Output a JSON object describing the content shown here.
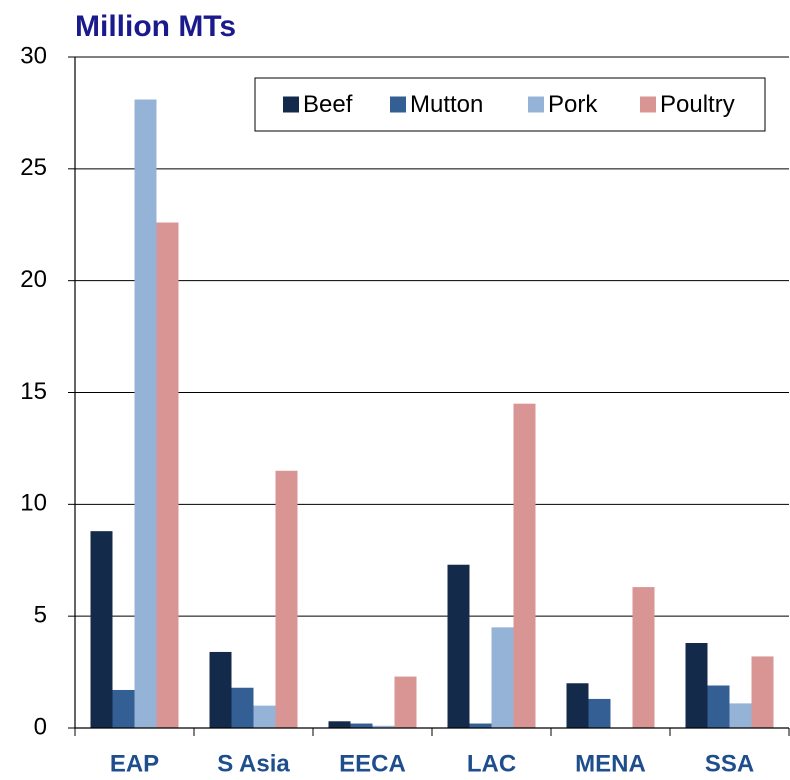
{
  "chart_data": {
    "type": "bar",
    "title": "Million MTs",
    "categories": [
      "EAP",
      "S Asia",
      "EECA",
      "LAC",
      "MENA",
      "SSA"
    ],
    "series": [
      {
        "name": "Beef",
        "color": "#142a4a",
        "values": [
          8.8,
          3.4,
          0.3,
          7.3,
          2.0,
          3.8
        ]
      },
      {
        "name": "Mutton",
        "color": "#345f95",
        "values": [
          1.7,
          1.8,
          0.2,
          0.2,
          1.3,
          1.9
        ]
      },
      {
        "name": "Pork",
        "color": "#95b3d7",
        "values": [
          28.1,
          1.0,
          0.1,
          4.5,
          null,
          1.1
        ]
      },
      {
        "name": "Poultry",
        "color": "#d99594",
        "values": [
          22.6,
          11.5,
          2.3,
          14.5,
          6.3,
          3.2
        ]
      }
    ],
    "ylim": [
      0,
      30
    ],
    "yticks": [
      0,
      5,
      10,
      15,
      20,
      25,
      30
    ],
    "grid": true,
    "legend": "top-right"
  }
}
